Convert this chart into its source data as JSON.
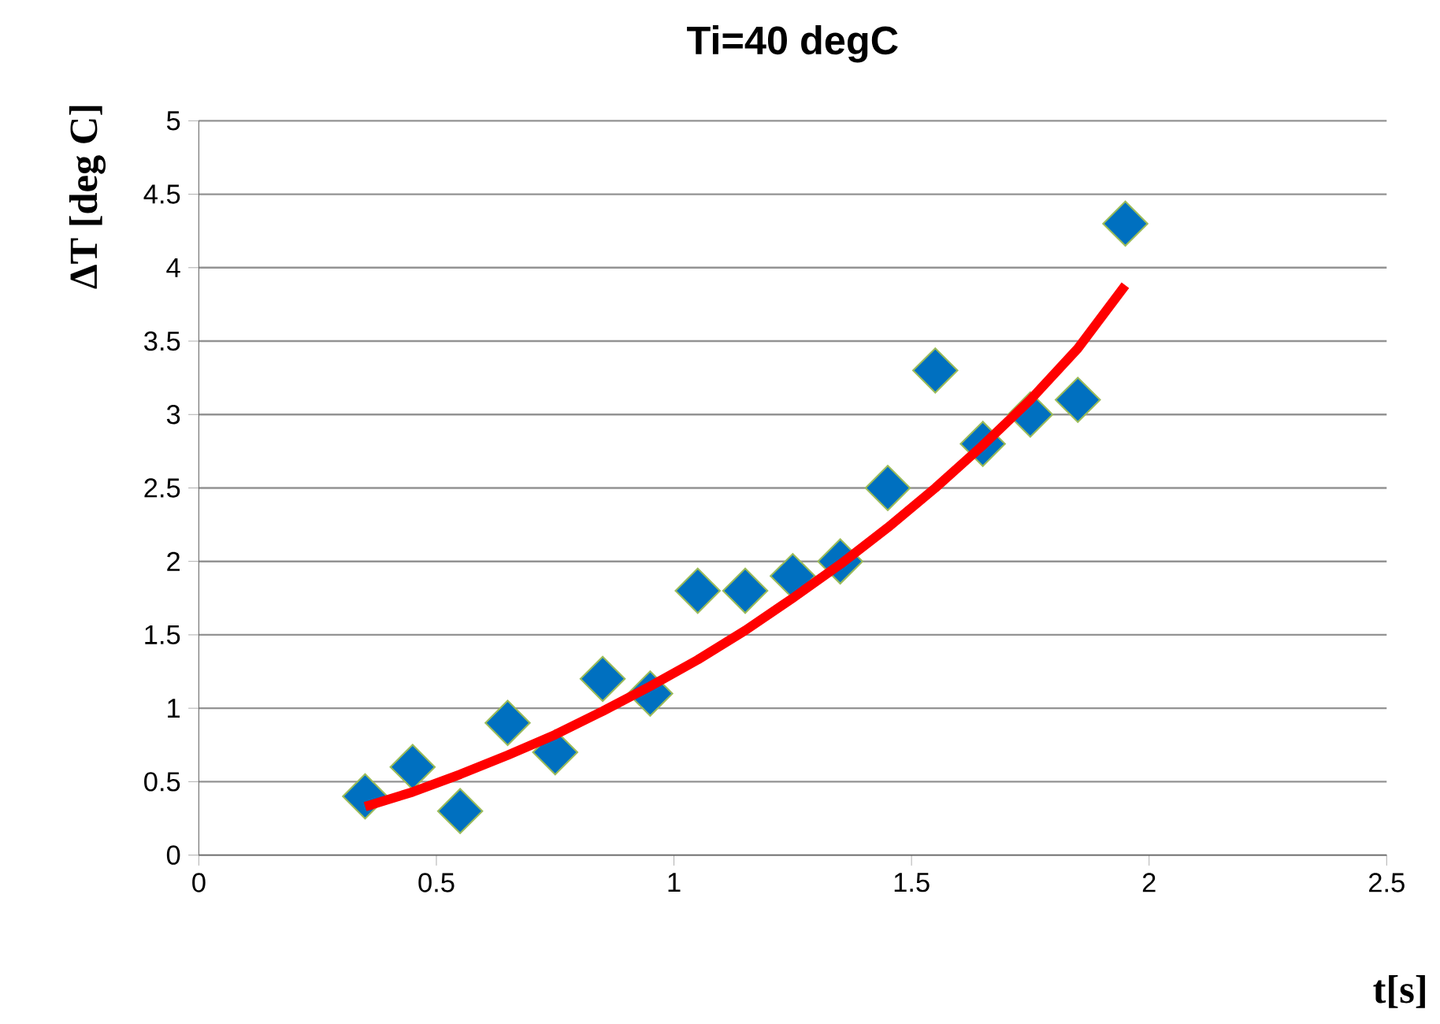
{
  "chart_data": {
    "type": "scatter",
    "title": "Ti=40 degC",
    "xlabel": "t[s]",
    "ylabel": "ΔT [deg C]",
    "xlim": [
      0,
      2.5
    ],
    "xticks": [
      0,
      0.5,
      1,
      1.5,
      2,
      2.5
    ],
    "ylim": [
      0,
      5
    ],
    "yticks": [
      0,
      0.5,
      1,
      1.5,
      2,
      2.5,
      3,
      3.5,
      4,
      4.5,
      5
    ],
    "grid": "y",
    "marker": "diamond",
    "series": [
      {
        "color": "#0070c0",
        "x": [
          0.35,
          0.45,
          0.55,
          0.65,
          0.75,
          0.85,
          0.95,
          1.05,
          1.15,
          1.25,
          1.35,
          1.45,
          1.55,
          1.65,
          1.75,
          1.85,
          1.95
        ],
        "values": [
          0.4,
          0.6,
          0.3,
          0.9,
          0.7,
          1.2,
          1.1,
          1.8,
          1.8,
          1.9,
          2.0,
          2.5,
          3.3,
          2.8,
          3.0,
          3.1,
          4.3
        ]
      },
      {
        "type": "line",
        "color": "#ff0000",
        "marker": "none",
        "x": [
          0.35,
          0.45,
          0.55,
          0.65,
          0.75,
          0.85,
          0.95,
          1.05,
          1.15,
          1.25,
          1.35,
          1.45,
          1.55,
          1.65,
          1.75,
          1.85,
          1.95
        ],
        "values": [
          0.33,
          0.43,
          0.55,
          0.68,
          0.82,
          0.98,
          1.15,
          1.33,
          1.53,
          1.75,
          1.98,
          2.23,
          2.5,
          2.79,
          3.1,
          3.45,
          3.88
        ]
      }
    ]
  }
}
